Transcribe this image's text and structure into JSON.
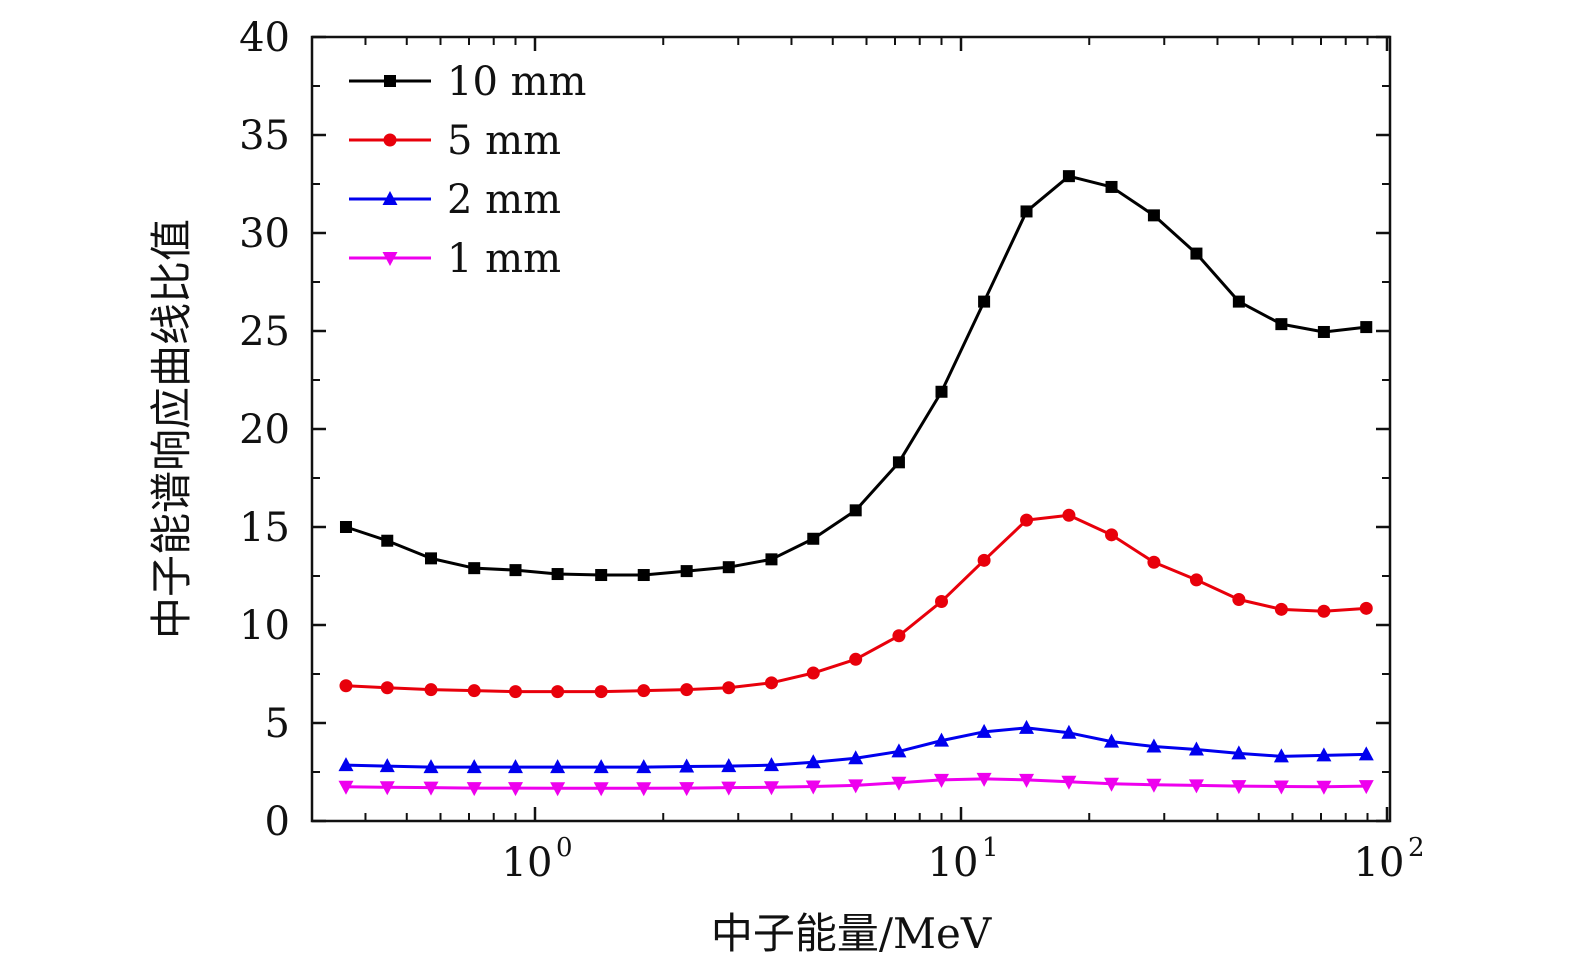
{
  "chart_data": {
    "type": "line",
    "xscale": "log",
    "xlabel": "中子能量/MeV",
    "ylabel": "中子能谱响应曲线比值",
    "xlim": [
      0.33,
      100
    ],
    "ylim": [
      0,
      40
    ],
    "yticks": [
      0,
      5,
      10,
      15,
      20,
      25,
      30,
      35,
      40
    ],
    "xticks": [
      {
        "value": 1,
        "base": "10",
        "exp": "0"
      },
      {
        "value": 10,
        "base": "10",
        "exp": "1"
      },
      {
        "value": 100,
        "base": "10",
        "exp": "2"
      }
    ],
    "legend_position": "top-left",
    "x": [
      0.36,
      0.45,
      0.57,
      0.72,
      0.9,
      1.13,
      1.43,
      1.8,
      2.27,
      2.85,
      3.59,
      4.5,
      5.66,
      7.15,
      9.0,
      11.33,
      14.25,
      17.92,
      22.56,
      28.37,
      35.7,
      44.9,
      56.5,
      71.1,
      89.4
    ],
    "series": [
      {
        "name": "10 mm",
        "color": "#000000",
        "marker": "square",
        "values": [
          15.0,
          14.3,
          13.4,
          12.9,
          12.8,
          12.6,
          12.55,
          12.55,
          12.75,
          12.95,
          13.35,
          14.4,
          15.85,
          18.3,
          21.9,
          26.5,
          31.1,
          32.9,
          32.35,
          30.9,
          28.95,
          26.5,
          25.35,
          24.95,
          25.2
        ]
      },
      {
        "name": "5 mm",
        "color": "#e8000b",
        "marker": "circle",
        "values": [
          6.9,
          6.8,
          6.7,
          6.65,
          6.6,
          6.6,
          6.6,
          6.65,
          6.7,
          6.8,
          7.05,
          7.55,
          8.25,
          9.45,
          11.2,
          13.3,
          15.35,
          15.6,
          14.6,
          13.2,
          12.3,
          11.3,
          10.8,
          10.7,
          10.85
        ]
      },
      {
        "name": "2 mm",
        "color": "#0000ee",
        "marker": "triangle-up",
        "values": [
          2.85,
          2.8,
          2.75,
          2.75,
          2.75,
          2.75,
          2.75,
          2.75,
          2.78,
          2.8,
          2.85,
          3.0,
          3.2,
          3.55,
          4.1,
          4.55,
          4.75,
          4.5,
          4.05,
          3.8,
          3.65,
          3.45,
          3.3,
          3.35,
          3.4
        ]
      },
      {
        "name": "1 mm",
        "color": "#ee00ee",
        "marker": "triangle-down",
        "values": [
          1.75,
          1.72,
          1.7,
          1.68,
          1.68,
          1.67,
          1.67,
          1.67,
          1.68,
          1.7,
          1.72,
          1.76,
          1.82,
          1.95,
          2.1,
          2.15,
          2.1,
          2.0,
          1.9,
          1.85,
          1.82,
          1.78,
          1.76,
          1.75,
          1.78
        ]
      }
    ]
  }
}
